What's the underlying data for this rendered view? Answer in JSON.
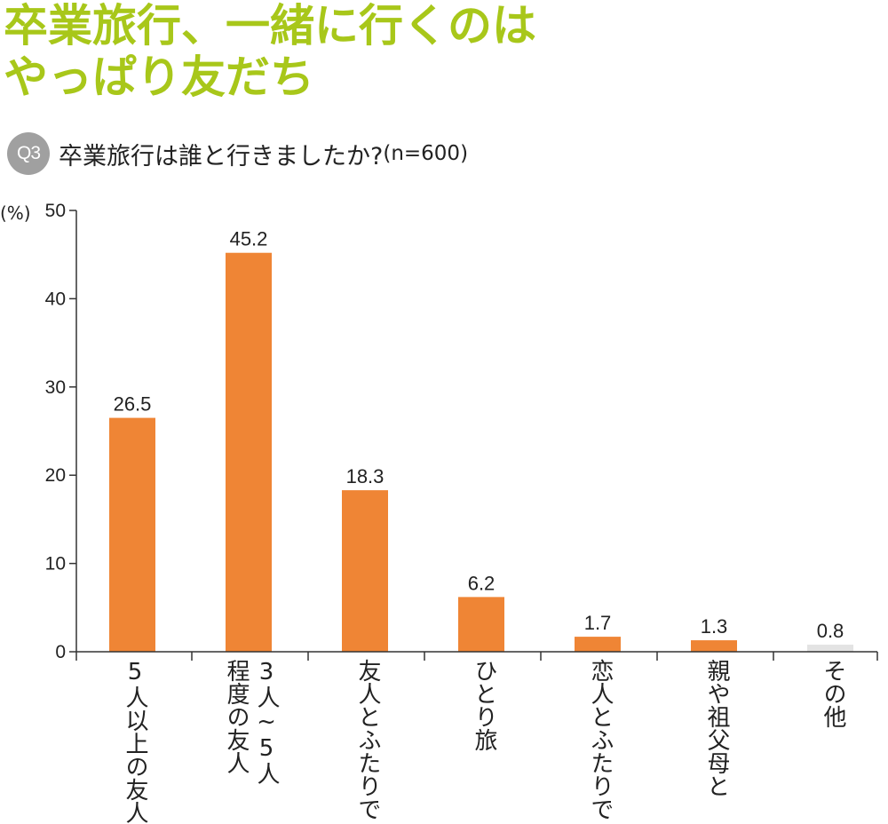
{
  "headline": {
    "line1": "卒業旅行、一緒に行くのは",
    "line2": "やっぱり友だち"
  },
  "question": {
    "badge": "Q3",
    "text": "卒業旅行は誰と行きましたか?",
    "sample": "(n=600)"
  },
  "chart_data": {
    "type": "bar",
    "title": "卒業旅行は誰と行きましたか?",
    "ylabel": "(%)",
    "xlabel": "",
    "ylim": [
      0,
      50
    ],
    "yticks": [
      "0",
      "10",
      "20",
      "30",
      "40",
      "50"
    ],
    "categories": [
      [
        "5人以上の友人"
      ],
      [
        "3人~5人",
        "程度の友人"
      ],
      [
        "友人とふたりで"
      ],
      [
        "ひとり旅"
      ],
      [
        "恋人とふたりで"
      ],
      [
        "親や祖父母と"
      ],
      [
        "その他"
      ]
    ],
    "values": [
      26.5,
      45.2,
      18.3,
      6.2,
      1.7,
      1.3,
      0.8
    ],
    "value_labels": [
      "26.5",
      "45.2",
      "18.3",
      "6.2",
      "1.7",
      "1.3",
      "0.8"
    ],
    "bar_colors": [
      "#ef8535",
      "#ef8535",
      "#ef8535",
      "#ef8535",
      "#ef8535",
      "#ef8535",
      "#e3e3e3"
    ],
    "axis_color": "#333333",
    "grid": false
  }
}
